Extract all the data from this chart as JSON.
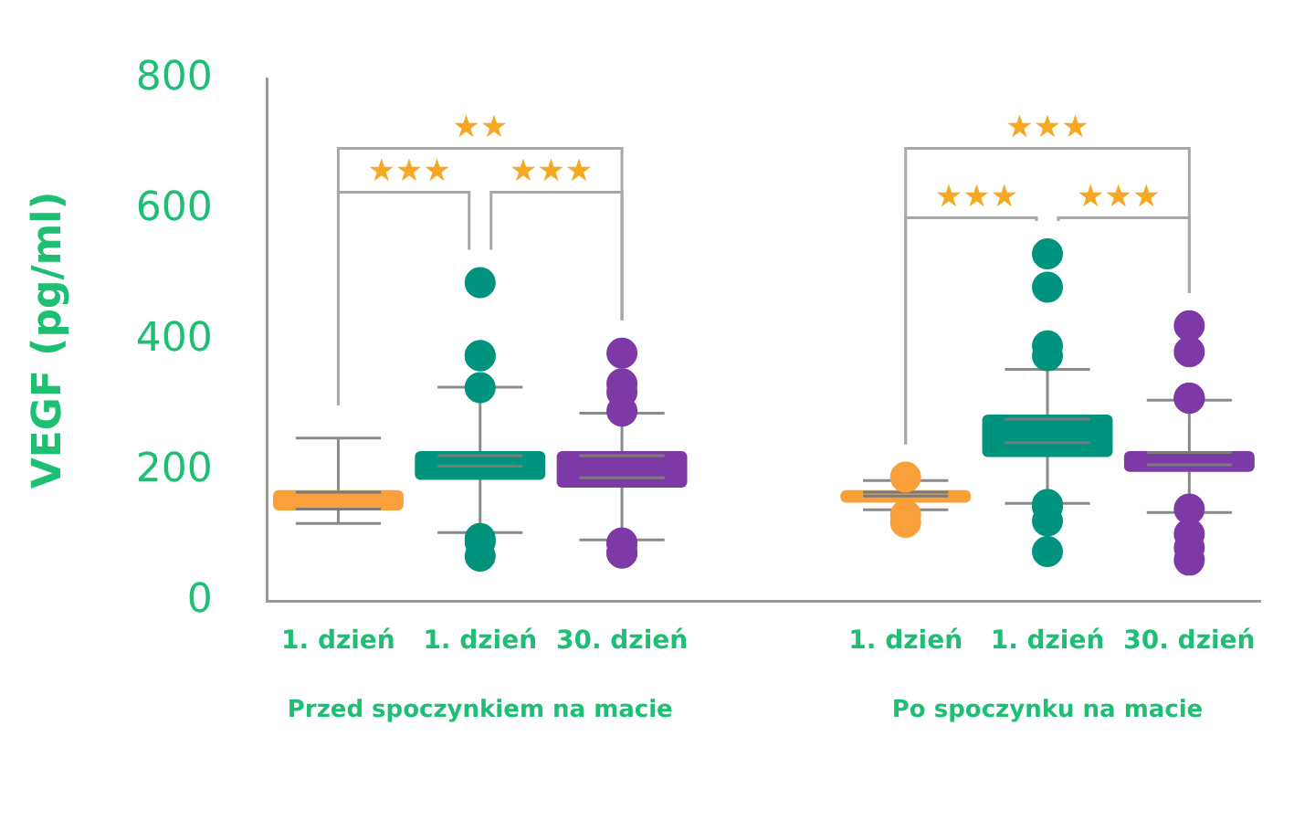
{
  "chart_data": {
    "type": "box",
    "ylabel": "VEGF (pg/ml)",
    "categories": [
      "1. dzień",
      "1. dzień",
      "30. dzień",
      null,
      "1. dzień",
      "1. dzień",
      "30. dzień"
    ],
    "colors": [
      "#f9a03a",
      "#00947f",
      "#7d3aa6",
      null,
      "#f9a03a",
      "#00947f",
      "#7d3aa6"
    ],
    "boxes": [
      {
        "low": 119,
        "q1": 139,
        "median": 141,
        "mean": 167,
        "q3": 170,
        "high": 250
      },
      {
        "low": 105,
        "q1": 186,
        "median": 207,
        "mean": 223,
        "q3": 230,
        "high": 328,
        "outliers": [
          488,
          376,
          376,
          327,
          96,
          91,
          69
        ]
      },
      {
        "low": 94,
        "q1": 174,
        "median": 189,
        "mean": 223,
        "q3": 230,
        "high": 288,
        "outliers": [
          380,
          333,
          320,
          291,
          89,
          89,
          74,
          74
        ]
      },
      null,
      {
        "low": 140,
        "q1": 151,
        "median": 161,
        "mean": 167,
        "q3": 170,
        "high": 185,
        "outliers": [
          190,
          132,
          121
        ]
      },
      {
        "low": 150,
        "q1": 221,
        "median": 243,
        "mean": 279,
        "q3": 286,
        "high": 355,
        "outliers": [
          532,
          481,
          391,
          376,
          148,
          145,
          123,
          76
        ]
      },
      {
        "low": 136,
        "q1": 198,
        "median": 209,
        "mean": 228,
        "q3": 230,
        "high": 308,
        "outliers": [
          422,
          382,
          311,
          311,
          141,
          103,
          82,
          63
        ]
      }
    ],
    "ylim": [
      0,
      800
    ],
    "yticks": [
      0,
      200,
      400,
      600,
      800
    ],
    "grid": false,
    "legend": false,
    "annotations": [
      "★★",
      "★★★",
      "★★★",
      "★★★",
      "★★★",
      "★★★",
      "Przed spoczynkiem na macie",
      "Po spoczynku na macie"
    ]
  }
}
